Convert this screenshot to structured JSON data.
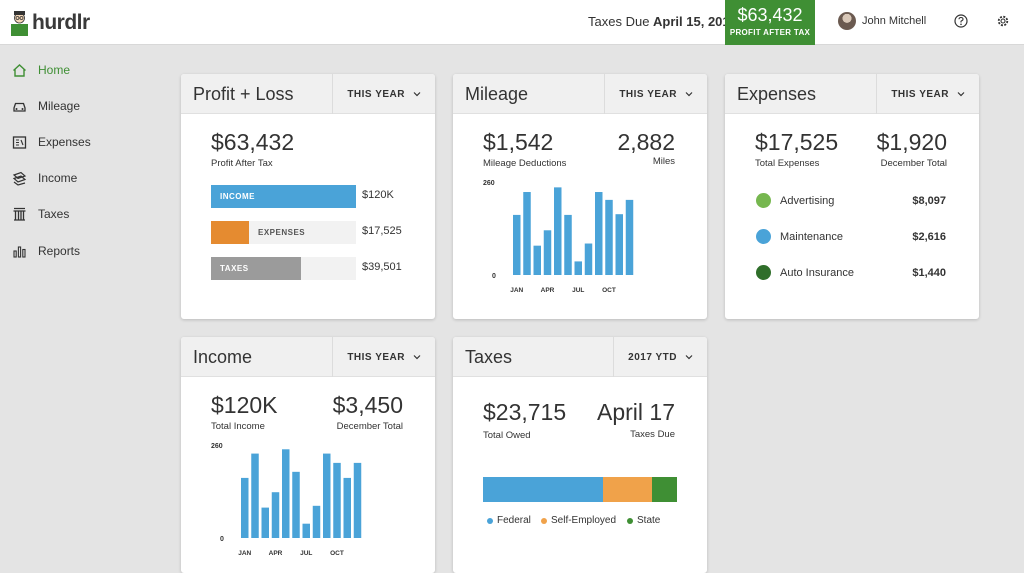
{
  "header": {
    "logo_text": "hurdlr",
    "taxes_due_label": "Taxes Due",
    "taxes_due_date": "April 15, 2019",
    "profit_value": "$63,432",
    "profit_label": "PROFIT AFTER TAX",
    "user_name": "John Mitchell",
    "icons": [
      "help-icon",
      "gear-icon"
    ]
  },
  "sidebar": {
    "items": [
      {
        "label": "Home",
        "icon": "home-icon",
        "active": true
      },
      {
        "label": "Mileage",
        "icon": "car-icon",
        "active": false
      },
      {
        "label": "Expenses",
        "icon": "receipt-icon",
        "active": false
      },
      {
        "label": "Income",
        "icon": "money-icon",
        "active": false
      },
      {
        "label": "Taxes",
        "icon": "building-icon",
        "active": false
      },
      {
        "label": "Reports",
        "icon": "bar-chart-icon",
        "active": false
      }
    ]
  },
  "profit_loss": {
    "title": "Profit + Loss",
    "period": "THIS YEAR",
    "value": "$63,432",
    "value_label": "Profit After Tax",
    "rows": [
      {
        "label": "INCOME",
        "value": "$120K",
        "fill": 1.0,
        "color": "#4aa3d8"
      },
      {
        "label": "EXPENSES",
        "value": "$17,525",
        "fill": 0.26,
        "color": "#e58b30"
      },
      {
        "label": "TAXES",
        "value": "$39,501",
        "fill": 0.62,
        "color": "#9b9b9b"
      }
    ]
  },
  "mileage": {
    "title": "Mileage",
    "period": "THIS YEAR",
    "value": "$1,542",
    "value_label": "Mileage Deductions",
    "value2": "2,882",
    "value2_label": "Miles",
    "chart_data": {
      "type": "bar",
      "ylim": [
        0,
        260
      ],
      "y_ticks": [
        "260",
        "0"
      ],
      "x_ticks": [
        "JAN",
        "APR",
        "JUL",
        "OCT"
      ],
      "values": [
        168,
        232,
        82,
        125,
        245,
        168,
        38,
        88,
        232,
        210,
        170,
        210
      ],
      "color": "#4aa3d8"
    }
  },
  "expenses": {
    "title": "Expenses",
    "period": "THIS YEAR",
    "value": "$17,525",
    "value_label": "Total Expenses",
    "value2": "$1,920",
    "value2_label": "December Total",
    "items": [
      {
        "name": "Advertising",
        "value": "$8,097",
        "color": "#76b74f"
      },
      {
        "name": "Maintenance",
        "value": "$2,616",
        "color": "#4aa3d8"
      },
      {
        "name": "Auto Insurance",
        "value": "$1,440",
        "color": "#2f6e2a"
      }
    ]
  },
  "income": {
    "title": "Income",
    "period": "THIS YEAR",
    "value": "$120K",
    "value_label": "Total Income",
    "value2": "$3,450",
    "value2_label": "December Total",
    "chart_data": {
      "type": "bar",
      "ylim": [
        0,
        260
      ],
      "y_ticks": [
        "260",
        "0"
      ],
      "x_ticks": [
        "JAN",
        "APR",
        "JUL",
        "OCT"
      ],
      "values": [
        168,
        236,
        85,
        128,
        248,
        185,
        40,
        90,
        236,
        210,
        168,
        210
      ],
      "color": "#4aa3d8"
    }
  },
  "taxes": {
    "title": "Taxes",
    "period": "2017 YTD",
    "value": "$23,715",
    "value_label": "Total Owed",
    "value2": "April 17",
    "value2_label": "Taxes Due",
    "chart_data": {
      "type": "bar",
      "stacked": true,
      "segments": [
        {
          "name": "Federal",
          "share": 0.62,
          "color": "#4aa3d8"
        },
        {
          "name": "Self-Employed",
          "share": 0.25,
          "color": "#f0a24a"
        },
        {
          "name": "State",
          "share": 0.13,
          "color": "#3f8f34"
        }
      ]
    }
  }
}
